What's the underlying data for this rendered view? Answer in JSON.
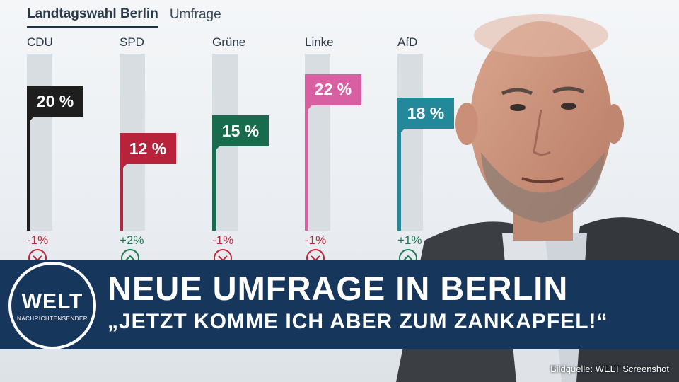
{
  "tabs": {
    "active": "Landtagswahl Berlin",
    "inactive": "Umfrage"
  },
  "parties": [
    {
      "name": "CDU",
      "value": 20,
      "label": "20 %",
      "change": "-1%",
      "direction": "down",
      "color": "#1e1e1e"
    },
    {
      "name": "SPD",
      "value": 12,
      "label": "12 %",
      "change": "+2%",
      "direction": "up",
      "color": "#b8223a"
    },
    {
      "name": "Grüne",
      "value": 15,
      "label": "15 %",
      "change": "-1%",
      "direction": "down",
      "color": "#186b4c"
    },
    {
      "name": "Linke",
      "value": 22,
      "label": "22 %",
      "change": "-1%",
      "direction": "down",
      "color": "#d95fa3"
    },
    {
      "name": "AfD",
      "value": 18,
      "label": "18 %",
      "change": "+1%",
      "direction": "up",
      "color": "#23889a"
    }
  ],
  "colors": {
    "down": "#c0263a",
    "up": "#1e7a52",
    "banner": "#17365c"
  },
  "banner": {
    "headline": "NEUE UMFRAGE IN BERLIN",
    "subline": "„JETZT KOMME ICH ABER ZUM ZANKAPFEL!“"
  },
  "logo": {
    "main": "WELT",
    "sub": "NACHRICHTENSENDER"
  },
  "credit": "Bildquelle: WELT Screenshot"
}
